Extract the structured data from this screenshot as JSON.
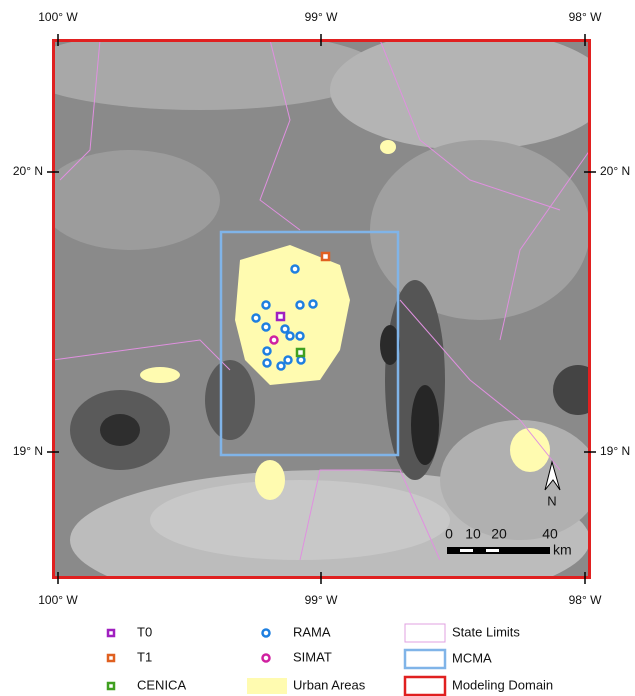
{
  "map": {
    "top_labels": [
      "100° W",
      "99° W",
      "98° W"
    ],
    "bottom_labels": [
      "100° W",
      "99° W",
      "98° W"
    ],
    "left_labels": [
      "20° N",
      "19° N"
    ],
    "right_labels": [
      "20° N",
      "19° N"
    ],
    "north": "N",
    "scale": {
      "ticks": [
        "0",
        "10",
        "20",
        "40"
      ],
      "unit": "km"
    }
  },
  "legend": [
    {
      "label": "T0"
    },
    {
      "label": "T1"
    },
    {
      "label": "CENICA"
    },
    {
      "label": "RAMA"
    },
    {
      "label": "SIMAT"
    },
    {
      "label": "Urban Areas"
    },
    {
      "label": "State Limits"
    },
    {
      "label": "MCMA"
    },
    {
      "label": "Modeling Domain"
    }
  ]
}
